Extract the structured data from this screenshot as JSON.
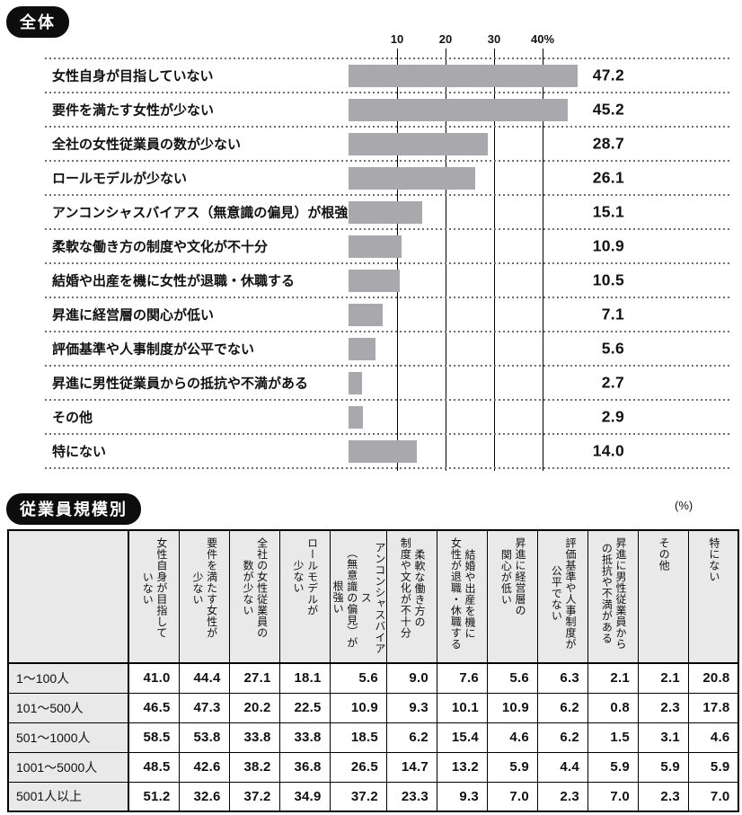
{
  "overall_section": {
    "badge": "全体",
    "bar_color_hex": "#a9a9ad",
    "gridline_color_hex": "#000000"
  },
  "chart_data": {
    "type": "bar",
    "orientation": "horizontal",
    "title": "全体",
    "unit": "%",
    "xticks": [
      10,
      20,
      30,
      40
    ],
    "xtick_labels": [
      "10",
      "20",
      "30",
      "40%"
    ],
    "xlim": [
      0,
      50
    ],
    "grid": "vertical-lines-on",
    "bar_color": "#a9a9ad",
    "categories": [
      "女性自身が目指していない",
      "要件を満たす女性が少ない",
      "全社の女性従業員の数が少ない",
      "ロールモデルが少ない",
      "アンコンシャスバイアス（無意識の偏見）が根強い",
      "柔軟な働き方の制度や文化が不十分",
      "結婚や出産を機に女性が退職・休職する",
      "昇進に経営層の関心が低い",
      "評価基準や人事制度が公平でない",
      "昇進に男性従業員からの抵抗や不満がある",
      "その他",
      "特にない"
    ],
    "values": [
      47.2,
      45.2,
      28.7,
      26.1,
      15.1,
      10.9,
      10.5,
      7.1,
      5.6,
      2.7,
      2.9,
      14.0
    ],
    "value_labels": [
      "47.2",
      "45.2",
      "28.7",
      "26.1",
      "15.1",
      "10.9",
      "10.5",
      "7.1",
      "5.6",
      "2.7",
      "2.9",
      "14.0"
    ]
  },
  "size_section": {
    "badge": "従業員規模別",
    "unit_note": "(%)",
    "header_bg_hex": "#e9e9e9",
    "table": {
      "corner": "",
      "columns": [
        "女性自身が目指して\nいない",
        "要件を満たす女性が\n少ない",
        "全社の女性従業員の\n数が少ない",
        "ロールモデルが\n少ない",
        "アンコンシャスバイアス\n（無意識の偏見）が\n根強い",
        "柔軟な働き方の\n制度や文化が不十分",
        "結婚や出産を機に\n女性が退職・休職する",
        "昇進に経営層の\n関心が低い",
        "評価基準や人事制度が\n公平でない",
        "昇進に男性従業員から\nの抵抗や不満がある",
        "その他",
        "特にない"
      ],
      "rows": [
        {
          "label": "1〜100人",
          "values": [
            "41.0",
            "44.4",
            "27.1",
            "18.1",
            "5.6",
            "9.0",
            "7.6",
            "5.6",
            "6.3",
            "2.1",
            "2.1",
            "20.8"
          ]
        },
        {
          "label": "101〜500人",
          "values": [
            "46.5",
            "47.3",
            "20.2",
            "22.5",
            "10.9",
            "9.3",
            "10.1",
            "10.9",
            "6.2",
            "0.8",
            "2.3",
            "17.8"
          ]
        },
        {
          "label": "501〜1000人",
          "values": [
            "58.5",
            "53.8",
            "33.8",
            "33.8",
            "18.5",
            "6.2",
            "15.4",
            "4.6",
            "6.2",
            "1.5",
            "3.1",
            "4.6"
          ]
        },
        {
          "label": "1001〜5000人",
          "values": [
            "48.5",
            "42.6",
            "38.2",
            "36.8",
            "26.5",
            "14.7",
            "13.2",
            "5.9",
            "4.4",
            "5.9",
            "5.9",
            "5.9"
          ]
        },
        {
          "label": "5001人以上",
          "values": [
            "51.2",
            "32.6",
            "37.2",
            "34.9",
            "37.2",
            "23.3",
            "9.3",
            "7.0",
            "2.3",
            "7.0",
            "2.3",
            "7.0"
          ]
        }
      ]
    }
  }
}
